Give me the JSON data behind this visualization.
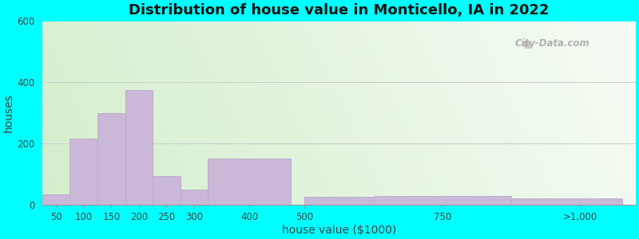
{
  "title": "Distribution of house value in Monticello, IA in 2022",
  "xlabel": "house value ($1000)",
  "ylabel": "houses",
  "bar_lefts": [
    25,
    75,
    125,
    175,
    225,
    275,
    325,
    500,
    625,
    875
  ],
  "bar_heights": [
    35,
    215,
    300,
    375,
    95,
    50,
    150,
    25,
    30,
    20
  ],
  "bar_widths": [
    50,
    50,
    50,
    50,
    50,
    50,
    150,
    125,
    250,
    200
  ],
  "bar_color": "#c9b8d8",
  "bar_edgecolor": "#b8a8cc",
  "xtick_labels": [
    "50",
    "100",
    "150",
    "200",
    "250",
    "300",
    "400",
    "500",
    "750",
    ">1,000"
  ],
  "xtick_positions": [
    50,
    100,
    150,
    200,
    250,
    300,
    400,
    500,
    750,
    1000
  ],
  "ylim": [
    0,
    600
  ],
  "xlim": [
    25,
    1100
  ],
  "yticks": [
    0,
    200,
    400,
    600
  ],
  "outer_bg": "#00ffff",
  "title_fontsize": 13,
  "axis_label_fontsize": 10,
  "watermark": "City-Data.com"
}
